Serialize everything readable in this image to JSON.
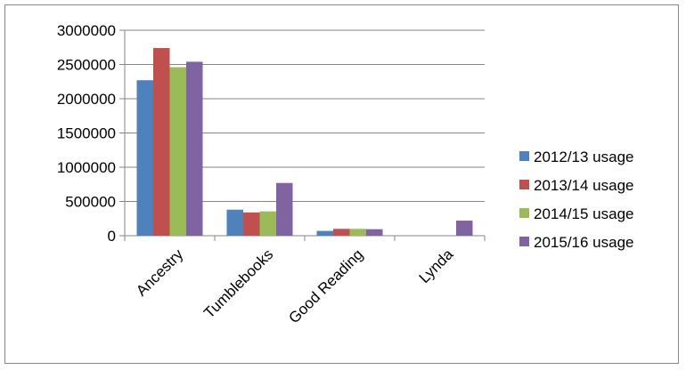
{
  "chart_data": {
    "type": "bar",
    "title": "",
    "xlabel": "",
    "ylabel": "",
    "categories": [
      "Ancestry",
      "Tumblebooks",
      "Good Reading",
      "Lynda"
    ],
    "series": [
      {
        "name": "2012/13 usage",
        "color": "#4f81bd",
        "values": [
          2270000,
          380000,
          70000,
          0
        ]
      },
      {
        "name": "2013/14 usage",
        "color": "#c0504d",
        "values": [
          2740000,
          340000,
          100000,
          0
        ]
      },
      {
        "name": "2014/15 usage",
        "color": "#9bbb59",
        "values": [
          2460000,
          355000,
          100000,
          0
        ]
      },
      {
        "name": "2015/16 usage",
        "color": "#8064a2",
        "values": [
          2540000,
          770000,
          95000,
          220000
        ]
      }
    ],
    "ylim": [
      0,
      3000000
    ],
    "yticks": [
      0,
      500000,
      1000000,
      1500000,
      2000000,
      2500000,
      3000000
    ],
    "grid": true,
    "legend_position": "right"
  }
}
